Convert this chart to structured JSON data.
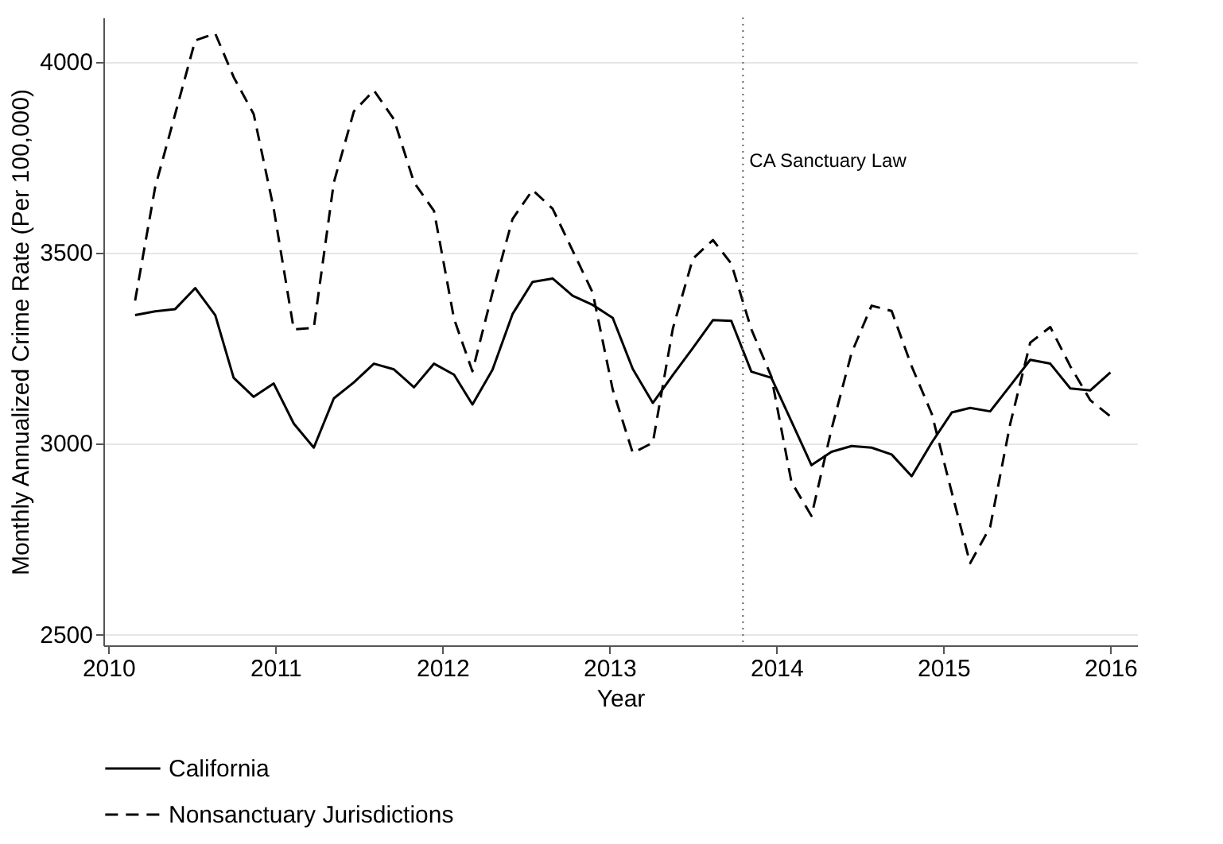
{
  "chart_data": {
    "type": "line",
    "xlabel": "Year",
    "ylabel": "Monthly Annualized Crime Rate (Per 100,000)",
    "x": [
      2010.16,
      2010.28,
      2010.4,
      2010.52,
      2010.64,
      2010.75,
      2010.87,
      2010.99,
      2011.11,
      2011.23,
      2011.35,
      2011.47,
      2011.59,
      2011.71,
      2011.83,
      2011.95,
      2012.07,
      2012.18,
      2012.3,
      2012.42,
      2012.54,
      2012.66,
      2012.78,
      2012.9,
      2013.02,
      2013.14,
      2013.26,
      2013.38,
      2013.5,
      2013.62,
      2013.73,
      2013.85,
      2013.97,
      2014.09,
      2014.21,
      2014.33,
      2014.45,
      2014.57,
      2014.69,
      2014.81,
      2014.93,
      2015.05,
      2015.16,
      2015.28,
      2015.4,
      2015.52,
      2015.64,
      2015.76,
      2015.88,
      2016.0
    ],
    "series": [
      {
        "name": "California",
        "color": "#000000",
        "line_style": "solid",
        "values": [
          3335,
          3345,
          3351,
          3406,
          3335,
          3171,
          3121,
          3156,
          3051,
          2988,
          3117,
          3159,
          3208,
          3193,
          3146,
          3208,
          3179,
          3101,
          3192,
          3338,
          3422,
          3431,
          3386,
          3362,
          3328,
          3194,
          3105,
          3178,
          3249,
          3322,
          3320,
          3187,
          3171,
          3057,
          2942,
          2977,
          2992,
          2988,
          2970,
          2913,
          3001,
          3080,
          3092,
          3083,
          3150,
          3218,
          3208,
          3143,
          3138,
          3185
        ]
      },
      {
        "name": "Nonsanctuary Jurisdictions",
        "color": "#000000",
        "line_style": "dashed",
        "values": [
          3373,
          3670,
          3862,
          4055,
          4073,
          3959,
          3862,
          3614,
          3298,
          3302,
          3683,
          3869,
          3924,
          3848,
          3683,
          3608,
          3325,
          3188,
          3394,
          3587,
          3663,
          3614,
          3504,
          3394,
          3140,
          2974,
          3001,
          3300,
          3483,
          3532,
          3470,
          3298,
          3174,
          2898,
          2809,
          3036,
          3236,
          3360,
          3346,
          3201,
          3077,
          2871,
          2685,
          2780,
          3050,
          3263,
          3304,
          3201,
          3112,
          3070
        ]
      }
    ],
    "xlim": [
      2009.97,
      2016.16
    ],
    "xticks": [
      2010,
      2011,
      2012,
      2013,
      2014,
      2015,
      2016
    ],
    "ylim": [
      2470,
      4115
    ],
    "yticks": [
      2500,
      3000,
      3500,
      4000
    ],
    "grid": "y",
    "legend": "bottom",
    "marker": "none",
    "ref_lines": [
      {
        "axis": "x",
        "value": 2013.8,
        "label": "CA Sanctuary Law",
        "color": "#666666",
        "line_style": "dotted"
      }
    ]
  }
}
